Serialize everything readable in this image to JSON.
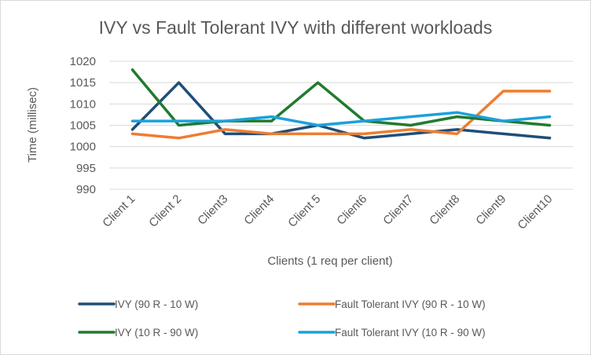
{
  "chart_data": {
    "type": "line",
    "title": "IVY vs Fault Tolerant IVY with different workloads",
    "xlabel": "Clients (1 req per client)",
    "ylabel": "Time (millisec)",
    "ylim": [
      990,
      1020
    ],
    "yticks": [
      "990",
      "995",
      "1000",
      "1005",
      "1010",
      "1015",
      "1020"
    ],
    "grid": true,
    "legend_position": "bottom",
    "categories": [
      "Client 1",
      "Client 2",
      "Client3",
      "Client4",
      "Client 5",
      "Client6",
      "Client7",
      "Client8",
      "Client9",
      "Client10"
    ],
    "series": [
      {
        "name": "IVY (90 R - 10 W)",
        "color": "#1f4e79",
        "values": [
          1004,
          1015,
          1003,
          1003,
          1005,
          1002,
          1003,
          1004,
          1003,
          1002
        ]
      },
      {
        "name": "Fault Tolerant IVY (90 R - 10 W)",
        "color": "#ed7d31",
        "values": [
          1003,
          1002,
          1004,
          1003,
          1003,
          1003,
          1004,
          1003,
          1013,
          1013
        ]
      },
      {
        "name": "IVY (10 R - 90 W)",
        "color": "#217a2f",
        "values": [
          1018,
          1005,
          1006,
          1006,
          1015,
          1006,
          1005,
          1007,
          1006,
          1005
        ]
      },
      {
        "name": "Fault Tolerant IVY (10 R - 90 W)",
        "color": "#1ba1dc",
        "values": [
          1006,
          1006,
          1006,
          1007,
          1005,
          1006,
          1007,
          1008,
          1006,
          1007
        ]
      }
    ]
  }
}
